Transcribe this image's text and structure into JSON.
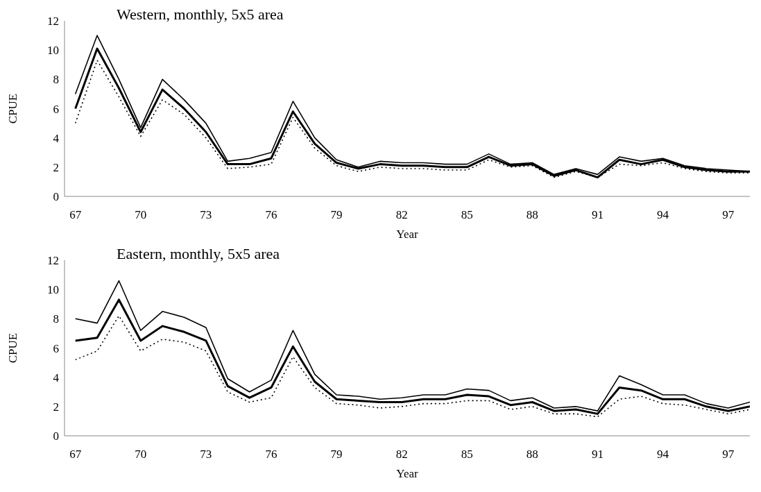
{
  "chart_data": [
    {
      "type": "line",
      "title": "Western, monthly, 5x5 area",
      "xlabel": "Year",
      "ylabel": "CPUE",
      "x": [
        67,
        68,
        69,
        70,
        71,
        72,
        73,
        74,
        75,
        76,
        77,
        78,
        79,
        80,
        81,
        82,
        83,
        84,
        85,
        86,
        87,
        88,
        89,
        90,
        91,
        92,
        93,
        94,
        95,
        96,
        97,
        98
      ],
      "xlim": [
        66.5,
        98
      ],
      "xticks": [
        67,
        70,
        73,
        76,
        79,
        82,
        85,
        88,
        91,
        94,
        97
      ],
      "ylim": [
        0,
        12
      ],
      "yticks": [
        0,
        2,
        4,
        6,
        8,
        10,
        12
      ],
      "grid": false,
      "legend": false,
      "marker": "none",
      "series": [
        {
          "color": "#000000",
          "line_style": "solid",
          "values": [
            7.0,
            11.0,
            8.0,
            4.7,
            8.0,
            6.6,
            5.0,
            2.4,
            2.6,
            3.0,
            6.5,
            4.0,
            2.5,
            2.0,
            2.4,
            2.3,
            2.3,
            2.2,
            2.2,
            2.9,
            2.2,
            2.3,
            1.5,
            1.9,
            1.5,
            2.7,
            2.4,
            2.6,
            2.1,
            1.9,
            1.8,
            1.7
          ]
        },
        {
          "color": "#000000",
          "line_style": "solid",
          "values": [
            6.0,
            10.1,
            7.4,
            4.4,
            7.3,
            6.0,
            4.4,
            2.2,
            2.2,
            2.6,
            5.8,
            3.6,
            2.3,
            1.9,
            2.2,
            2.1,
            2.1,
            2.0,
            2.0,
            2.7,
            2.1,
            2.2,
            1.4,
            1.8,
            1.3,
            2.5,
            2.2,
            2.5,
            2.0,
            1.8,
            1.7,
            1.7
          ]
        },
        {
          "color": "#000000",
          "line_style": "dotted",
          "values": [
            5.0,
            9.3,
            6.8,
            4.1,
            6.6,
            5.6,
            4.0,
            1.9,
            2.0,
            2.2,
            5.4,
            3.3,
            2.1,
            1.7,
            2.0,
            1.9,
            1.9,
            1.8,
            1.8,
            2.5,
            2.0,
            2.1,
            1.3,
            1.7,
            1.3,
            2.2,
            2.1,
            2.3,
            1.9,
            1.7,
            1.6,
            1.6
          ]
        }
      ]
    },
    {
      "type": "line",
      "title": "Eastern, monthly, 5x5 area",
      "xlabel": "Year",
      "ylabel": "CPUE",
      "x": [
        67,
        68,
        69,
        70,
        71,
        72,
        73,
        74,
        75,
        76,
        77,
        78,
        79,
        80,
        81,
        82,
        83,
        84,
        85,
        86,
        87,
        88,
        89,
        90,
        91,
        92,
        93,
        94,
        95,
        96,
        97,
        98
      ],
      "xlim": [
        66.5,
        98
      ],
      "xticks": [
        67,
        70,
        73,
        76,
        79,
        82,
        85,
        88,
        91,
        94,
        97
      ],
      "ylim": [
        0,
        12
      ],
      "yticks": [
        0,
        2,
        4,
        6,
        8,
        10,
        12
      ],
      "grid": false,
      "legend": false,
      "marker": "none",
      "series": [
        {
          "color": "#000000",
          "line_style": "solid",
          "values": [
            8.0,
            7.7,
            10.6,
            7.2,
            8.5,
            8.1,
            7.4,
            3.9,
            3.0,
            3.8,
            7.2,
            4.2,
            2.8,
            2.7,
            2.5,
            2.6,
            2.8,
            2.8,
            3.2,
            3.1,
            2.4,
            2.6,
            1.9,
            2.0,
            1.7,
            4.1,
            3.5,
            2.8,
            2.8,
            2.2,
            1.9,
            2.3
          ]
        },
        {
          "color": "#000000",
          "line_style": "solid",
          "values": [
            6.5,
            6.7,
            9.3,
            6.5,
            7.5,
            7.1,
            6.5,
            3.4,
            2.6,
            3.3,
            6.1,
            3.7,
            2.5,
            2.4,
            2.3,
            2.3,
            2.5,
            2.5,
            2.8,
            2.7,
            2.1,
            2.3,
            1.7,
            1.8,
            1.5,
            3.3,
            3.1,
            2.5,
            2.5,
            2.0,
            1.7,
            2.0
          ]
        },
        {
          "color": "#000000",
          "line_style": "dotted",
          "values": [
            5.2,
            5.8,
            8.2,
            5.8,
            6.6,
            6.4,
            5.8,
            3.0,
            2.3,
            2.6,
            5.4,
            3.3,
            2.2,
            2.1,
            1.9,
            2.0,
            2.2,
            2.2,
            2.4,
            2.4,
            1.8,
            2.0,
            1.5,
            1.5,
            1.3,
            2.5,
            2.7,
            2.2,
            2.1,
            1.8,
            1.5,
            1.8
          ]
        }
      ]
    }
  ]
}
